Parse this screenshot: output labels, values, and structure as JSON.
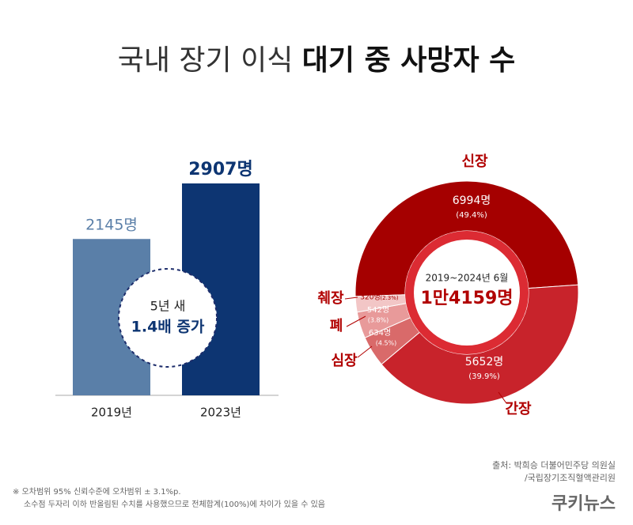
{
  "header": {
    "title_light": "국내 장기 이식",
    "title_bold": "대기 중 사망자 수"
  },
  "chart_data": [
    {
      "type": "bar",
      "categories": [
        "2019년",
        "2023년"
      ],
      "values": [
        2145,
        2907
      ],
      "value_labels": [
        "2145명",
        "2907명"
      ],
      "colors": [
        "#5a7fa8",
        "#0d3572"
      ],
      "annotation": [
        "5년 새",
        "1.4배 증가"
      ]
    },
    {
      "type": "donut",
      "categories": [
        "신장",
        "간장",
        "심장",
        "폐",
        "췌장"
      ],
      "values": [
        6994,
        5652,
        634,
        542,
        320
      ],
      "value_labels": [
        "6994명",
        "5652명",
        "634명",
        "542명",
        "320명"
      ],
      "percentages": [
        49.4,
        39.9,
        4.5,
        3.8,
        2.3
      ],
      "percentage_labels": [
        "(49.4%)",
        "(39.9%)",
        "(4.5%)",
        "(3.8%)",
        "(2.3%)"
      ],
      "colors": [
        "#a50000",
        "#c8232b",
        "#d96a6a",
        "#e89a9a",
        "#f2c6c6"
      ],
      "center_text": "2019~2024년 6월",
      "total_label": "1만4159명"
    }
  ],
  "footer": {
    "source": [
      "출처: 박희승 더불어민주당 의원실",
      "/국립장기조직혈액관리원"
    ],
    "notes": [
      "※ 오차범위 95% 신뢰수준에 오차범위 ± 3.1%p.",
      "소수점 두자리 이하 반올림된 수치를 사용했으므로 전체합계(100%)에 차이가 있을 수 있음"
    ],
    "logo": "쿠키뉴스"
  }
}
